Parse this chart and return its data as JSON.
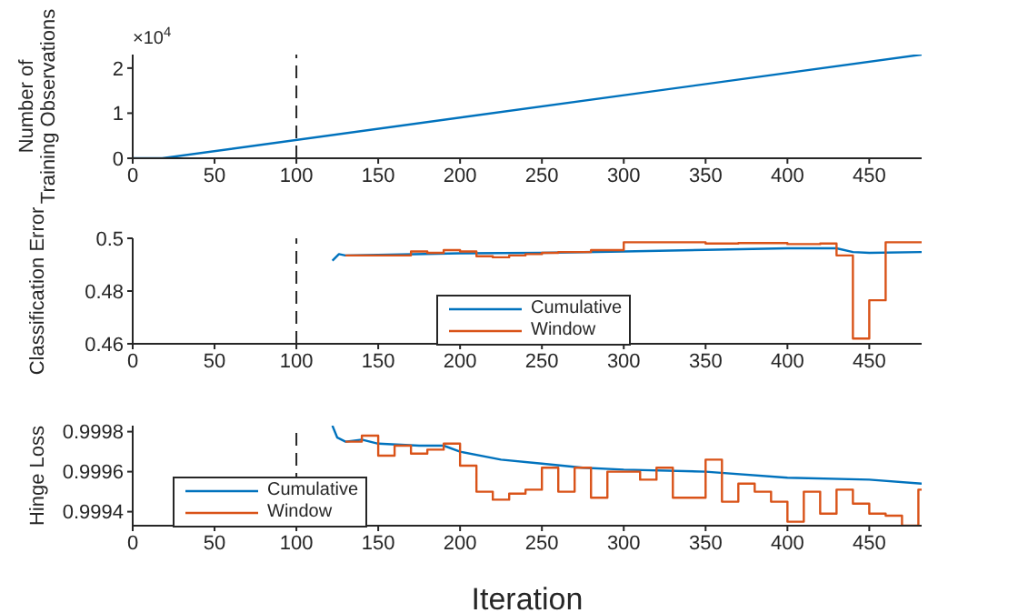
{
  "chart_data": [
    {
      "type": "line",
      "ylabel": "Number of\nTraining Observations",
      "annotations": [
        "×10$^{4}$"
      ],
      "xlim": [
        0,
        482
      ],
      "xticks": [
        0,
        50,
        100,
        150,
        200,
        250,
        300,
        350,
        400,
        450
      ],
      "ylim": [
        0,
        2.3
      ],
      "yticks": [
        0,
        1,
        2
      ],
      "legend": false,
      "ref_lines": [
        {
          "axis": "x",
          "value": 100,
          "line_style": "dashed"
        }
      ],
      "series": [
        {
          "color": "#0072bd",
          "x": [
            0,
            18,
            482
          ],
          "values": [
            0,
            0,
            2.3
          ]
        }
      ]
    },
    {
      "type": "line",
      "ylabel": "Classification Error",
      "xlim": [
        0,
        482
      ],
      "xticks": [
        0,
        50,
        100,
        150,
        200,
        250,
        300,
        350,
        400,
        450
      ],
      "ylim": [
        0.46,
        0.5
      ],
      "yticks": [
        0.46,
        0.48,
        0.5
      ],
      "legend": "bottom",
      "ref_lines": [
        {
          "axis": "x",
          "value": 100,
          "line_style": "dashed"
        }
      ],
      "series": [
        {
          "name": "Cumulative",
          "color": "#0072bd",
          "x": [
            122,
            126,
            130,
            150,
            200,
            250,
            300,
            350,
            400,
            430,
            440,
            450,
            482
          ],
          "values": [
            0.4915,
            0.494,
            0.4935,
            0.4937,
            0.4943,
            0.4945,
            0.495,
            0.4956,
            0.4962,
            0.4962,
            0.4948,
            0.4945,
            0.4948
          ]
        },
        {
          "name": "Window",
          "type": "step",
          "color": "#d95319",
          "x": [
            130,
            165,
            170,
            180,
            190,
            200,
            210,
            220,
            230,
            240,
            250,
            260,
            280,
            300,
            350,
            370,
            400,
            420,
            430,
            440,
            450,
            460,
            482
          ],
          "values": [
            0.4935,
            0.4935,
            0.495,
            0.4945,
            0.4955,
            0.495,
            0.4932,
            0.4928,
            0.4935,
            0.494,
            0.4945,
            0.4948,
            0.4955,
            0.4985,
            0.498,
            0.4982,
            0.4978,
            0.498,
            0.4935,
            0.462,
            0.4765,
            0.4985,
            0.4985
          ]
        }
      ]
    },
    {
      "type": "line",
      "ylabel": "Hinge Loss",
      "xlabel": "Iteration",
      "xlim": [
        0,
        482
      ],
      "xticks": [
        0,
        50,
        100,
        150,
        200,
        250,
        300,
        350,
        400,
        450
      ],
      "ylim": [
        0.99933,
        0.99983
      ],
      "yticks": [
        0.9994,
        0.9996,
        0.9998
      ],
      "legend": "bottom left",
      "ref_lines": [
        {
          "axis": "x",
          "value": 100,
          "line_style": "dashed"
        }
      ],
      "series": [
        {
          "name": "Cumulative",
          "color": "#0072bd",
          "x": [
            122,
            125,
            130,
            140,
            150,
            175,
            190,
            200,
            225,
            250,
            275,
            300,
            350,
            400,
            450,
            482
          ],
          "values": [
            0.99983,
            0.99977,
            0.99975,
            0.99976,
            0.99974,
            0.99973,
            0.99973,
            0.9997,
            0.99966,
            0.99964,
            0.99962,
            0.99961,
            0.9996,
            0.99957,
            0.99956,
            0.99954
          ]
        },
        {
          "name": "Window",
          "type": "step",
          "color": "#d95319",
          "x": [
            130,
            140,
            150,
            160,
            170,
            180,
            190,
            200,
            210,
            220,
            230,
            240,
            250,
            260,
            270,
            280,
            290,
            310,
            320,
            330,
            350,
            360,
            370,
            380,
            390,
            400,
            410,
            420,
            430,
            440,
            450,
            460,
            470,
            480,
            482
          ],
          "values": [
            0.99975,
            0.99978,
            0.99968,
            0.99973,
            0.99969,
            0.99971,
            0.99974,
            0.99963,
            0.9995,
            0.99946,
            0.99949,
            0.99951,
            0.99962,
            0.9995,
            0.99962,
            0.99947,
            0.9996,
            0.99956,
            0.99962,
            0.99947,
            0.99966,
            0.99945,
            0.99954,
            0.9995,
            0.99945,
            0.99935,
            0.9995,
            0.99939,
            0.99951,
            0.99944,
            0.99939,
            0.99938,
            0.99933,
            0.99951,
            0.99951
          ]
        }
      ]
    }
  ]
}
